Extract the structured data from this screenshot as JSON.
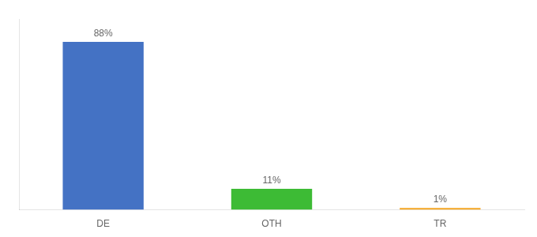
{
  "chart_data": {
    "type": "bar",
    "categories": [
      "DE",
      "OTH",
      "TR"
    ],
    "values": [
      88,
      11,
      1
    ],
    "value_labels": [
      "88%",
      "11%",
      "1%"
    ],
    "colors": [
      "#4472c4",
      "#3dbb35",
      "#f5a623"
    ],
    "ylim": [
      0,
      100
    ],
    "grid": false,
    "data_labels": true,
    "tick_labels": "x"
  }
}
